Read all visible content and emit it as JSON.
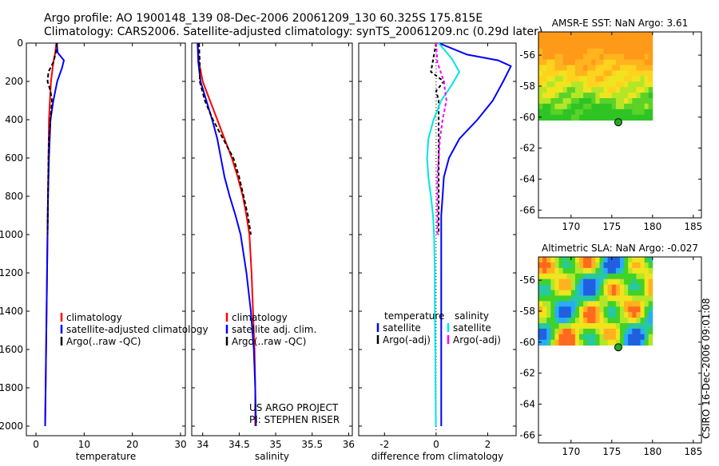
{
  "header": {
    "title_line1": "Argo profile: AO 1900148_139 08-Dec-2006 20061209_130 60.325S 175.815E",
    "title_line2": "Climatology: CARS2006. Satellite-adjusted climatology: synTS_20061209.nc (0.29d later)"
  },
  "side_text": "CSIRO 16-Dec-2006 09:01:08",
  "colors": {
    "climatology": "#ff0000",
    "satellite": "#0000ff",
    "argo": "#000000",
    "satellite_salinity": "#00e5e5",
    "argo_salinity_adj": "#ff00ff",
    "marker": "#22aa22"
  },
  "chart_data": [
    {
      "id": "temperature",
      "type": "line",
      "xlabel": "temperature",
      "ylabel": "",
      "xlim": [
        -2,
        31
      ],
      "ylim": [
        2050,
        0
      ],
      "xticks": [
        0,
        10,
        20,
        30
      ],
      "yticks": [
        0,
        200,
        400,
        600,
        800,
        1000,
        1200,
        1400,
        1600,
        1800,
        2000
      ],
      "legend_position": "bottom-right",
      "legend": [
        "climatology",
        "satellite-adjusted climatology",
        "Argo(..raw -QC)"
      ],
      "series": [
        {
          "name": "climatology",
          "color": "#ff0000",
          "dash": "",
          "points": [
            [
              4.2,
              0
            ],
            [
              4.0,
              50
            ],
            [
              3.6,
              100
            ],
            [
              3.1,
              200
            ],
            [
              2.9,
              300
            ],
            [
              2.7,
              400
            ],
            [
              2.6,
              600
            ],
            [
              2.5,
              800
            ],
            [
              2.4,
              1000
            ],
            [
              2.3,
              1200
            ],
            [
              2.2,
              1400
            ],
            [
              2.1,
              1600
            ],
            [
              2.0,
              1800
            ],
            [
              1.9,
              2000
            ]
          ]
        },
        {
          "name": "satellite-adjusted climatology",
          "color": "#0000ff",
          "dash": "",
          "points": [
            [
              4.3,
              0
            ],
            [
              4.5,
              50
            ],
            [
              5.8,
              90
            ],
            [
              5.4,
              130
            ],
            [
              4.4,
              200
            ],
            [
              3.6,
              300
            ],
            [
              3.0,
              400
            ],
            [
              2.7,
              600
            ],
            [
              2.5,
              800
            ],
            [
              2.4,
              1000
            ],
            [
              2.3,
              1200
            ],
            [
              2.2,
              1400
            ],
            [
              2.1,
              1600
            ],
            [
              2.0,
              1800
            ],
            [
              1.9,
              2000
            ]
          ]
        },
        {
          "name": "Argo(..raw -QC)",
          "color": "#000000",
          "dash": "5,3",
          "points": [
            [
              4.4,
              0
            ],
            [
              4.1,
              50
            ],
            [
              3.6,
              100
            ],
            [
              2.6,
              150
            ],
            [
              2.4,
              200
            ],
            [
              3.0,
              250
            ],
            [
              3.3,
              300
            ],
            [
              3.0,
              400
            ],
            [
              2.7,
              500
            ],
            [
              2.6,
              600
            ],
            [
              2.5,
              800
            ],
            [
              2.4,
              1000
            ]
          ]
        }
      ]
    },
    {
      "id": "salinity",
      "type": "line",
      "xlabel": "salinity",
      "ylabel": "",
      "xlim": [
        33.85,
        36.05
      ],
      "ylim": [
        2050,
        0
      ],
      "xticks": [
        34,
        34.5,
        35,
        35.5,
        36
      ],
      "yticks": [
        0,
        200,
        400,
        600,
        800,
        1000,
        1200,
        1400,
        1600,
        1800,
        2000
      ],
      "legend_position": "bottom-right",
      "legend": [
        "climatology",
        "satellite adj. clim.",
        "Argo(..raw -QC)"
      ],
      "annotations": [
        "US ARGO PROJECT",
        "PI: STEPHEN RISER"
      ],
      "series": [
        {
          "name": "climatology",
          "color": "#ff0000",
          "dash": "",
          "points": [
            [
              33.93,
              0
            ],
            [
              33.95,
              100
            ],
            [
              34.0,
              200
            ],
            [
              34.1,
              300
            ],
            [
              34.2,
              400
            ],
            [
              34.3,
              500
            ],
            [
              34.4,
              600
            ],
            [
              34.48,
              700
            ],
            [
              34.55,
              800
            ],
            [
              34.6,
              900
            ],
            [
              34.64,
              1000
            ],
            [
              34.67,
              1200
            ],
            [
              34.69,
              1400
            ],
            [
              34.71,
              1600
            ],
            [
              34.72,
              1800
            ],
            [
              34.72,
              2000
            ]
          ]
        },
        {
          "name": "satellite adj. clim.",
          "color": "#0000ff",
          "dash": "",
          "points": [
            [
              33.93,
              0
            ],
            [
              33.94,
              100
            ],
            [
              33.97,
              200
            ],
            [
              34.05,
              300
            ],
            [
              34.13,
              400
            ],
            [
              34.2,
              500
            ],
            [
              34.25,
              600
            ],
            [
              34.3,
              700
            ],
            [
              34.37,
              800
            ],
            [
              34.45,
              900
            ],
            [
              34.52,
              1000
            ],
            [
              34.6,
              1200
            ],
            [
              34.66,
              1400
            ],
            [
              34.7,
              1600
            ],
            [
              34.72,
              1800
            ],
            [
              34.73,
              2000
            ]
          ]
        },
        {
          "name": "Argo(..raw -QC)",
          "color": "#000000",
          "dash": "5,3",
          "points": [
            [
              33.95,
              0
            ],
            [
              33.96,
              100
            ],
            [
              33.96,
              200
            ],
            [
              34.03,
              300
            ],
            [
              34.14,
              400
            ],
            [
              34.28,
              500
            ],
            [
              34.42,
              600
            ],
            [
              34.5,
              700
            ],
            [
              34.56,
              800
            ],
            [
              34.62,
              900
            ],
            [
              34.66,
              1000
            ]
          ]
        }
      ]
    },
    {
      "id": "difference",
      "type": "line",
      "xlabel": "difference from climatology",
      "ylabel": "",
      "xlim": [
        -3,
        3.1
      ],
      "ylim": [
        2050,
        0
      ],
      "xticks": [
        -2,
        0,
        2
      ],
      "yticks": [
        0,
        200,
        400,
        600,
        800,
        1000,
        1200,
        1400,
        1600,
        1800,
        2000
      ],
      "legend_position": "bottom-right",
      "legend_headers": [
        "temperature",
        "salinity"
      ],
      "legend": [
        "satellite",
        "Argo(-adj)",
        "satellite",
        "Argo(-adj)"
      ],
      "series": [
        {
          "name": "temperature satellite",
          "color": "#0000ff",
          "dash": "",
          "points": [
            [
              0.1,
              0
            ],
            [
              1.2,
              60
            ],
            [
              2.4,
              90
            ],
            [
              2.9,
              120
            ],
            [
              2.6,
              200
            ],
            [
              2.2,
              300
            ],
            [
              1.6,
              400
            ],
            [
              0.9,
              500
            ],
            [
              0.5,
              600
            ],
            [
              0.3,
              700
            ],
            [
              0.25,
              800
            ],
            [
              0.2,
              900
            ],
            [
              0.2,
              1000
            ],
            [
              0.2,
              1200
            ],
            [
              0.2,
              1400
            ],
            [
              0.2,
              1600
            ],
            [
              0.2,
              1800
            ],
            [
              0.2,
              2000
            ]
          ]
        },
        {
          "name": "temperature Argo(-adj)",
          "color": "#000000",
          "dash": "4,3",
          "points": [
            [
              0.0,
              0
            ],
            [
              -0.2,
              150
            ],
            [
              0.3,
              200
            ],
            [
              0.0,
              250
            ],
            [
              0.1,
              300
            ],
            [
              0.1,
              400
            ],
            [
              0.1,
              600
            ],
            [
              0.1,
              800
            ],
            [
              0.1,
              1000
            ]
          ]
        },
        {
          "name": "salinity satellite",
          "color": "#00e5e5",
          "dash": "",
          "points": [
            [
              0.1,
              0
            ],
            [
              0.6,
              80
            ],
            [
              0.9,
              150
            ],
            [
              0.6,
              220
            ],
            [
              0.2,
              300
            ],
            [
              -0.1,
              400
            ],
            [
              -0.3,
              500
            ],
            [
              -0.35,
              600
            ],
            [
              -0.3,
              700
            ],
            [
              -0.2,
              800
            ],
            [
              -0.12,
              900
            ],
            [
              -0.08,
              1000
            ],
            [
              -0.05,
              1200
            ],
            [
              -0.05,
              1400
            ],
            [
              -0.03,
              1600
            ],
            [
              -0.02,
              1800
            ],
            [
              -0.01,
              2000
            ]
          ]
        },
        {
          "name": "salinity Argo(-adj)",
          "color": "#ff00ff",
          "dash": "4,3",
          "points": [
            [
              0.0,
              0
            ],
            [
              0.05,
              100
            ],
            [
              0.3,
              200
            ],
            [
              0.4,
              300
            ],
            [
              0.25,
              400
            ],
            [
              0.15,
              500
            ],
            [
              0.1,
              600
            ],
            [
              0.05,
              700
            ],
            [
              0.05,
              800
            ],
            [
              0.05,
              1000
            ]
          ]
        }
      ]
    },
    {
      "id": "sst_map",
      "type": "heatmap",
      "title": "AMSR-E SST: NaN Argo: 3.61",
      "xlim": [
        166,
        186
      ],
      "ylim": [
        -66.5,
        -54.5
      ],
      "xticks": [
        170,
        175,
        180,
        185
      ],
      "yticks": [
        -56,
        -58,
        -60,
        -62,
        -64,
        -66
      ],
      "extent": {
        "lon": [
          166,
          180
        ],
        "lat": [
          -60.2,
          -54.5
        ]
      },
      "marker": {
        "lon": 175.8,
        "lat": -60.33
      }
    },
    {
      "id": "sla_map",
      "type": "heatmap",
      "title": "Altimetric SLA: NaN Argo: -0.027",
      "xlim": [
        166,
        186
      ],
      "ylim": [
        -66.5,
        -54.5
      ],
      "xticks": [
        170,
        175,
        180,
        185
      ],
      "yticks": [
        -56,
        -58,
        -60,
        -62,
        -64,
        -66
      ],
      "extent": {
        "lon": [
          166,
          180
        ],
        "lat": [
          -60.2,
          -54.5
        ]
      },
      "marker": {
        "lon": 175.8,
        "lat": -60.33
      }
    }
  ]
}
